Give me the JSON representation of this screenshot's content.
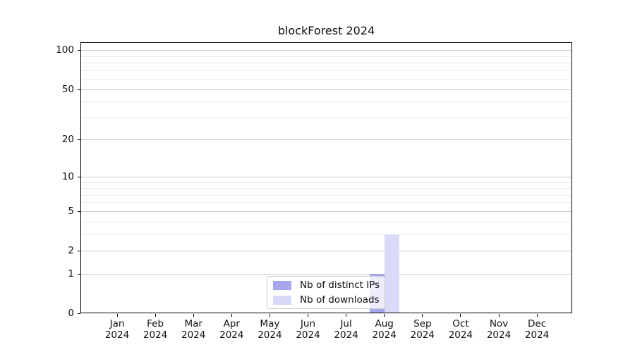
{
  "chart_data": {
    "type": "bar",
    "title": "blockForest 2024",
    "categories": [
      "Jan",
      "Feb",
      "Mar",
      "Apr",
      "May",
      "Jun",
      "Jul",
      "Aug",
      "Sep",
      "Oct",
      "Nov",
      "Dec"
    ],
    "category_year": "2024",
    "series": [
      {
        "name": "Nb of distinct IPs",
        "color": "#a7a7ef",
        "values": [
          0,
          0,
          0,
          0,
          0,
          0,
          0,
          1,
          0,
          0,
          0,
          0
        ]
      },
      {
        "name": "Nb of downloads",
        "color": "#d9d9f8",
        "values": [
          0,
          0,
          0,
          0,
          0,
          0,
          0,
          3,
          0,
          0,
          0,
          0
        ]
      }
    ],
    "yscale": "log1p",
    "ylim": [
      0,
      115
    ],
    "yticks": [
      0,
      1,
      2,
      5,
      10,
      20,
      50,
      100
    ],
    "minor_yticks": [
      3,
      4,
      6,
      7,
      8,
      9,
      30,
      40,
      60,
      70,
      80,
      90
    ],
    "grid": "on",
    "legend_position": "lower center"
  }
}
